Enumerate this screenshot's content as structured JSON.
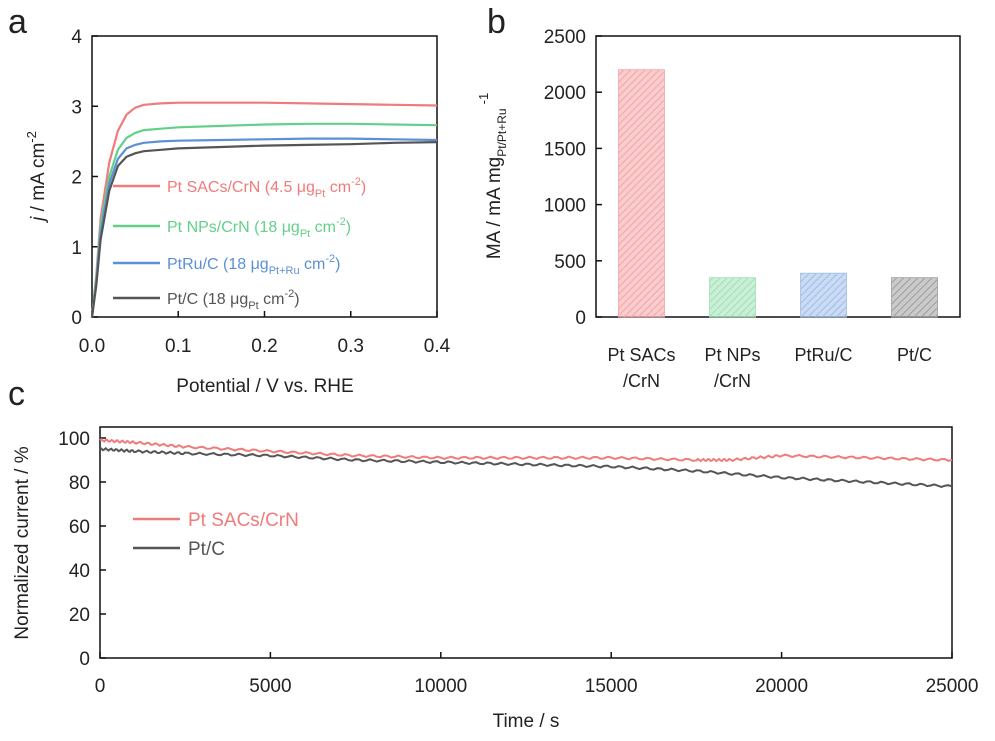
{
  "chart_data": [
    {
      "panel": "a",
      "type": "line",
      "xlabel": "Potential / V vs. RHE",
      "ylabel_main": "j",
      "ylabel_rest": " / mA cm",
      "ylabel_sup": "-2",
      "xlim": [
        0.0,
        0.4
      ],
      "ylim": [
        0,
        4
      ],
      "xticks": [
        "0.0",
        "0.1",
        "0.2",
        "0.3",
        "0.4"
      ],
      "yticks": [
        "0",
        "1",
        "2",
        "3",
        "4"
      ],
      "series": [
        {
          "name": "Pt SACs/CrN",
          "legend_main": "Pt SACs/CrN (4.5 μg",
          "legend_sub": "Pt",
          "legend_tail": " cm",
          "legend_sup": "-2",
          "legend_end": ")",
          "color": "#f07b7b",
          "x": [
            0,
            0.005,
            0.01,
            0.02,
            0.03,
            0.04,
            0.05,
            0.06,
            0.08,
            0.1,
            0.15,
            0.2,
            0.25,
            0.3,
            0.35,
            0.4
          ],
          "y": [
            0,
            0.6,
            1.4,
            2.2,
            2.65,
            2.88,
            2.98,
            3.02,
            3.04,
            3.05,
            3.05,
            3.05,
            3.04,
            3.03,
            3.02,
            3.01
          ]
        },
        {
          "name": "Pt NPs/CrN",
          "legend_main": "Pt NPs/CrN (18 μg",
          "legend_sub": "Pt",
          "legend_tail": " cm",
          "legend_sup": "-2",
          "legend_end": ")",
          "color": "#63d08a",
          "x": [
            0,
            0.005,
            0.01,
            0.02,
            0.03,
            0.04,
            0.05,
            0.06,
            0.08,
            0.1,
            0.15,
            0.2,
            0.25,
            0.3,
            0.35,
            0.4
          ],
          "y": [
            0,
            0.55,
            1.3,
            2.0,
            2.38,
            2.55,
            2.62,
            2.66,
            2.68,
            2.7,
            2.72,
            2.74,
            2.75,
            2.75,
            2.74,
            2.73
          ]
        },
        {
          "name": "PtRu/C",
          "legend_main": "PtRu/C (18 μg",
          "legend_sub": "Pt+Ru",
          "legend_tail": " cm",
          "legend_sup": "-2",
          "legend_end": ")",
          "color": "#5b8fd6",
          "x": [
            0,
            0.005,
            0.01,
            0.02,
            0.03,
            0.04,
            0.05,
            0.06,
            0.08,
            0.1,
            0.15,
            0.2,
            0.25,
            0.3,
            0.35,
            0.4
          ],
          "y": [
            0,
            0.5,
            1.2,
            1.9,
            2.25,
            2.4,
            2.45,
            2.48,
            2.5,
            2.51,
            2.52,
            2.53,
            2.54,
            2.54,
            2.53,
            2.52
          ]
        },
        {
          "name": "Pt/C",
          "legend_main": "Pt/C (18 μg",
          "legend_sub": "Pt",
          "legend_tail": " cm",
          "legend_sup": "-2",
          "legend_end": ")",
          "color": "#555555",
          "x": [
            0,
            0.005,
            0.01,
            0.02,
            0.03,
            0.04,
            0.05,
            0.06,
            0.08,
            0.1,
            0.15,
            0.2,
            0.25,
            0.3,
            0.35,
            0.4
          ],
          "y": [
            0,
            0.45,
            1.1,
            1.8,
            2.15,
            2.28,
            2.33,
            2.36,
            2.38,
            2.4,
            2.42,
            2.44,
            2.45,
            2.46,
            2.48,
            2.49
          ]
        }
      ]
    },
    {
      "panel": "b",
      "type": "bar",
      "ylabel_main": "MA  / mA mg",
      "ylabel_sub": "Pt/Pt+Ru",
      "ylabel_sup": "-1",
      "ylim": [
        0,
        2500
      ],
      "yticks": [
        "0",
        "500",
        "1000",
        "1500",
        "2000",
        "2500"
      ],
      "categories": [
        [
          "Pt SACs",
          "/CrN"
        ],
        [
          "Pt NPs",
          "/CrN"
        ],
        [
          "PtRu/C",
          ""
        ],
        [
          "Pt/C",
          ""
        ]
      ],
      "values": [
        2200,
        350,
        390,
        350
      ],
      "colors": [
        "#f4a3a3",
        "#9fe0b4",
        "#9ebde8",
        "#9e9e9e"
      ]
    },
    {
      "panel": "c",
      "type": "line",
      "xlabel": "Time / s",
      "ylabel": "Normalized current / %",
      "xlim": [
        0,
        25000
      ],
      "ylim": [
        0,
        105
      ],
      "xticks": [
        "0",
        "5000",
        "10000",
        "15000",
        "20000",
        "25000"
      ],
      "yticks": [
        "0",
        "20",
        "40",
        "60",
        "80",
        "100"
      ],
      "series": [
        {
          "name": "Pt SACs/CrN",
          "color": "#f07b7b",
          "x": [
            0,
            1000,
            2500,
            5000,
            7500,
            10000,
            12500,
            15000,
            17500,
            18500,
            20000,
            22500,
            25000
          ],
          "y": [
            99,
            98,
            96,
            94,
            92,
            91,
            91,
            91,
            90,
            90,
            92,
            91,
            90
          ]
        },
        {
          "name": "Pt/C",
          "color": "#555555",
          "x": [
            0,
            1000,
            2500,
            5000,
            7500,
            10000,
            12500,
            15000,
            17500,
            20000,
            22500,
            25000
          ],
          "y": [
            95,
            94,
            93,
            92,
            90,
            89,
            88,
            87,
            85,
            82,
            80,
            78
          ]
        }
      ]
    }
  ]
}
